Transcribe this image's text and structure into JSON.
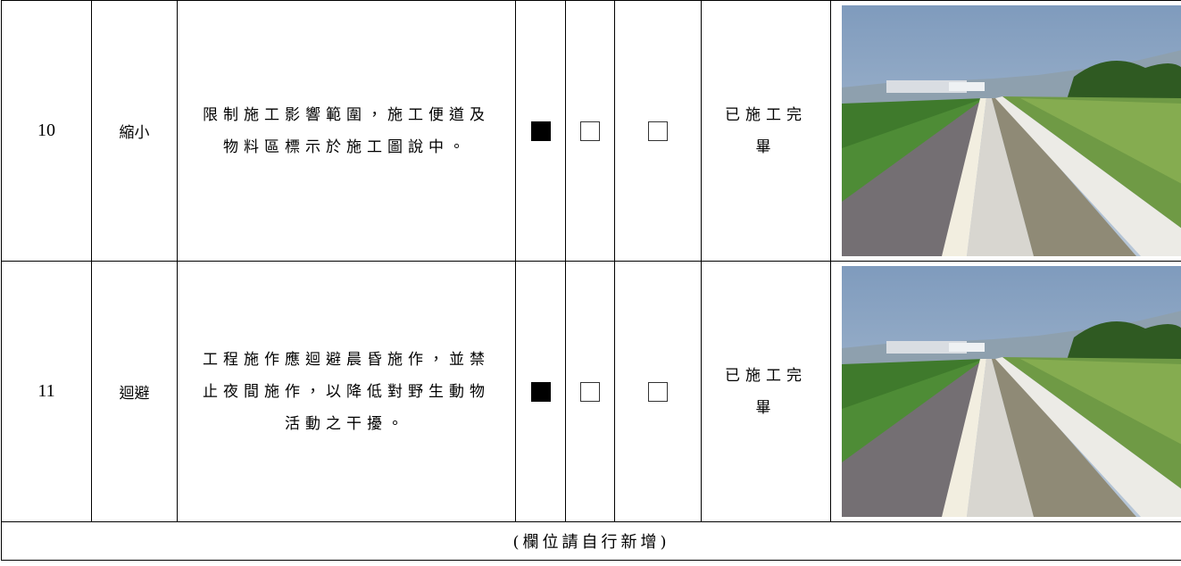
{
  "table": {
    "rows": [
      {
        "no": "10",
        "type": "縮小",
        "measure": "限制施工影響範圍，施工便道及物料區標示於施工圖說中。",
        "checks": [
          true,
          false,
          false
        ],
        "status": "已施工完畢"
      },
      {
        "no": "11",
        "type": "迴避",
        "measure": "工程施作應迴避晨昏施作，並禁止夜間施作，以降低對野生動物活動之干擾。",
        "checks": [
          true,
          false,
          false
        ],
        "status": "已施工完畢"
      }
    ],
    "footer": "(欄位請自行新增)"
  }
}
